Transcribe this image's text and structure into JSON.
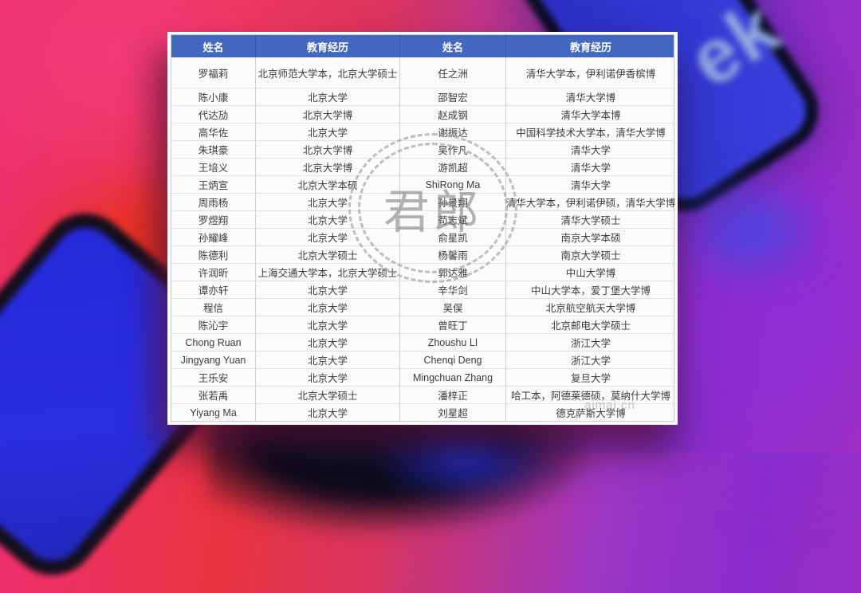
{
  "colors": {
    "header_bg": "#4467bf",
    "header_text": "#ffffff",
    "cell_text": "#3c3c3c",
    "stamp": "#6f6f6f",
    "phone_screen_blue": "#3338d2",
    "background_pink": "#ef3072",
    "background_purple": "#8a2ecd"
  },
  "background": {
    "phone_logo_fragment": "ek"
  },
  "watermarks": {
    "stamp_text": "君郎",
    "site_text": "aimai.cn"
  },
  "table": {
    "headers": [
      "姓名",
      "教育经历",
      "姓名",
      "教育经历"
    ],
    "rows": [
      [
        "罗福莉",
        "北京师范大学本，北京大学硕士",
        "任之洲",
        "清华大学本，伊利诺伊香槟博"
      ],
      [
        "陈小康",
        "北京大学",
        "邵智宏",
        "清华大学博"
      ],
      [
        "代达劢",
        "北京大学博",
        "赵成钢",
        "清华大学本博"
      ],
      [
        "高华佐",
        "北京大学",
        "谢振达",
        "中国科学技术大学本，清华大学博"
      ],
      [
        "朱琪豪",
        "北京大学博",
        "吴作凡",
        "清华大学"
      ],
      [
        "王培义",
        "北京大学博",
        "游凯超",
        "清华大学"
      ],
      [
        "王炳宣",
        "北京大学本硕",
        "ShiRong Ma",
        "清华大学"
      ],
      [
        "周雨杨",
        "北京大学",
        "孙景翔",
        "清华大学本，伊利诺伊硕，清华大学博"
      ],
      [
        "罗煜翔",
        "北京大学",
        "苟志斌",
        "清华大学硕士"
      ],
      [
        "孙耀峰",
        "北京大学",
        "俞星凯",
        "南京大学本硕"
      ],
      [
        "陈德利",
        "北京大学硕士",
        "杨馨雨",
        "南京大学硕士"
      ],
      [
        "许润昕",
        "上海交通大学本，北京大学硕士",
        "郭达雅",
        "中山大学博"
      ],
      [
        "谭亦轩",
        "北京大学",
        "辛华剑",
        "中山大学本，爱丁堡大学博"
      ],
      [
        "程信",
        "北京大学",
        "吴俣",
        "北京航空航天大学博"
      ],
      [
        "陈沁宇",
        "北京大学",
        "曾旺丁",
        "北京邮电大学硕士"
      ],
      [
        "Chong Ruan",
        "北京大学",
        "Zhoushu LI",
        "浙江大学"
      ],
      [
        "Jingyang Yuan",
        "北京大学",
        "Chenqi Deng",
        "浙江大学"
      ],
      [
        "王乐安",
        "北京大学",
        "Mingchuan Zhang",
        "复旦大学"
      ],
      [
        "张若禹",
        "北京大学硕士",
        "潘梓正",
        "哈工本，阿德莱德硕，莫纳什大学博"
      ],
      [
        "Yiyang Ma",
        "北京大学",
        "刘星超",
        "德克萨斯大学博"
      ]
    ]
  }
}
